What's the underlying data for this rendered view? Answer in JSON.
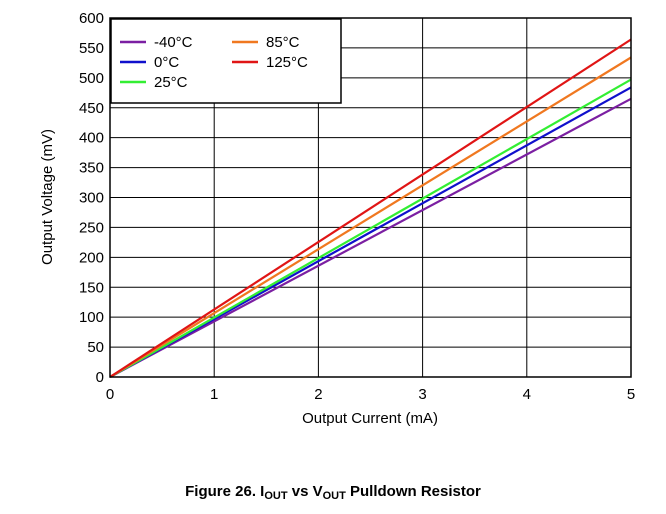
{
  "chart_data": {
    "type": "line",
    "xlabel": "Output Current (mA)",
    "ylabel": "Output Voltage (mV)",
    "xlim": [
      0,
      5
    ],
    "ylim": [
      0,
      600
    ],
    "xticks": [
      "0",
      "1",
      "2",
      "3",
      "4",
      "5"
    ],
    "yticks": [
      "0",
      "50",
      "100",
      "150",
      "200",
      "250",
      "300",
      "350",
      "400",
      "450",
      "500",
      "550",
      "600"
    ],
    "grid": true,
    "legend_position": "top-left",
    "series": [
      {
        "name": "-40°C",
        "color": "#7B1FA2",
        "x": [
          0,
          5
        ],
        "y": [
          0,
          465
        ]
      },
      {
        "name": "0°C",
        "color": "#1010CC",
        "x": [
          0,
          5
        ],
        "y": [
          0,
          484
        ]
      },
      {
        "name": "25°C",
        "color": "#33EE33",
        "x": [
          0,
          5
        ],
        "y": [
          0,
          497
        ]
      },
      {
        "name": "85°C",
        "color": "#F07820",
        "x": [
          0,
          5
        ],
        "y": [
          0,
          534
        ]
      },
      {
        "name": "125°C",
        "color": "#E01515",
        "x": [
          0,
          5
        ],
        "y": [
          0,
          564
        ]
      }
    ]
  },
  "caption": {
    "prefix": "Figure 26. I",
    "sub1": "OUT",
    "middle": " vs V",
    "sub2": "OUT",
    "suffix": " Pulldown Resistor"
  }
}
